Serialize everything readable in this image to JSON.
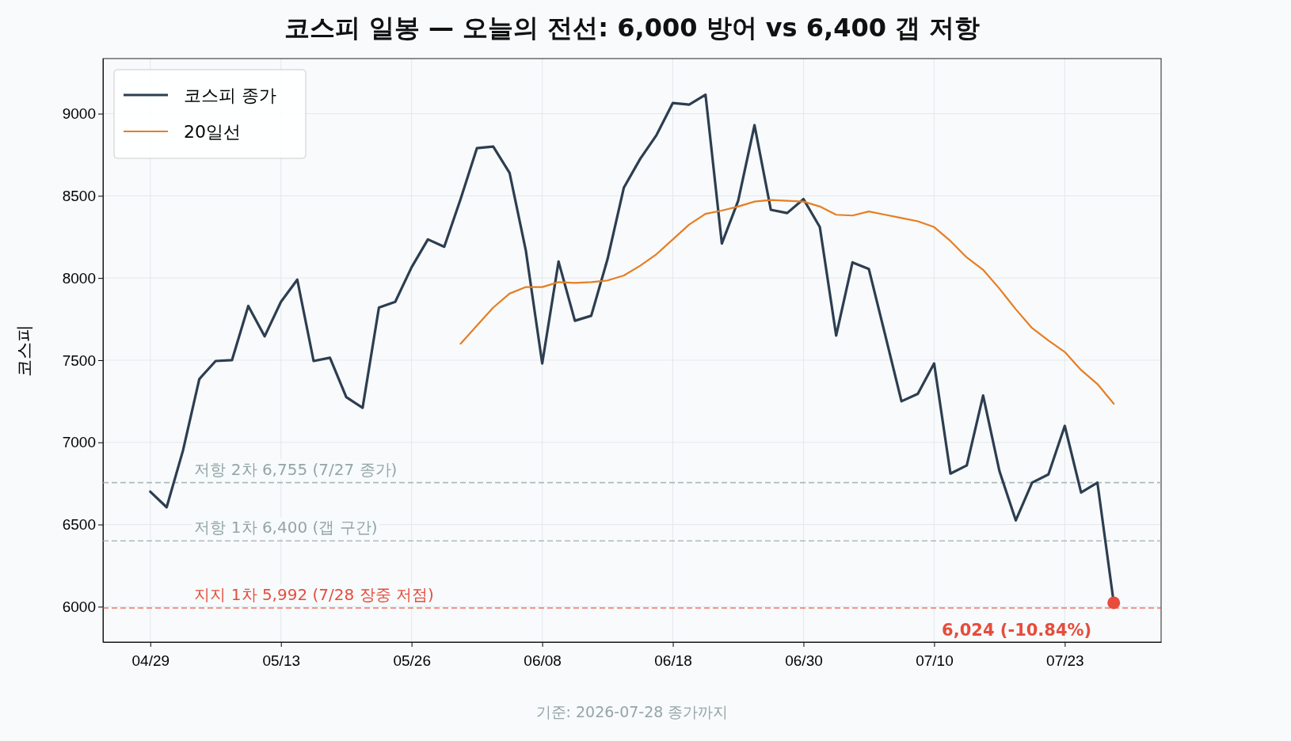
{
  "chart_data": {
    "type": "line",
    "title": "코스피 일봉 — 오늘의 전선: 6,000 방어 vs 6,400 갭 저항",
    "ylabel": "코스피",
    "categories": [
      "04/29",
      null,
      null,
      null,
      null,
      null,
      null,
      null,
      "05/13",
      null,
      null,
      null,
      null,
      null,
      null,
      null,
      "05/26",
      null,
      null,
      null,
      null,
      null,
      null,
      null,
      "06/08",
      null,
      null,
      null,
      null,
      null,
      null,
      null,
      "06/18",
      null,
      null,
      null,
      null,
      null,
      null,
      null,
      "06/30",
      null,
      null,
      null,
      null,
      null,
      null,
      null,
      "07/10",
      null,
      null,
      null,
      null,
      null,
      null,
      null,
      "07/23",
      null,
      null,
      null
    ],
    "series": [
      {
        "name": "코스피 종가",
        "color": "#2c3e50",
        "values": [
          6700,
          6605,
          6950,
          7385,
          7495,
          7500,
          7830,
          7645,
          7855,
          7990,
          7495,
          7515,
          7275,
          7210,
          7820,
          7855,
          8065,
          8235,
          8190,
          8480,
          8790,
          8800,
          8640,
          8165,
          7480,
          8100,
          7740,
          7770,
          8115,
          8550,
          8725,
          8870,
          9065,
          9055,
          9115,
          8210,
          8470,
          8930,
          8415,
          8395,
          8480,
          8310,
          7650,
          8095,
          8055,
          7655,
          7250,
          7295,
          7480,
          6810,
          6860,
          7285,
          6825,
          6525,
          6755,
          6805,
          7100,
          6695,
          6755,
          6024
        ]
      },
      {
        "name": "20일선",
        "color": "#e67e22",
        "values": [
          null,
          null,
          null,
          null,
          null,
          null,
          null,
          null,
          null,
          null,
          null,
          null,
          null,
          null,
          null,
          null,
          null,
          null,
          null,
          7600,
          7710,
          7820,
          7905,
          7945,
          7945,
          7975,
          7970,
          7975,
          7985,
          8015,
          8075,
          8145,
          8235,
          8325,
          8390,
          8410,
          8435,
          8465,
          8475,
          8470,
          8465,
          8435,
          8385,
          8380,
          8405,
          8385,
          8365,
          8345,
          8310,
          8225,
          8125,
          8050,
          7935,
          7810,
          7695,
          7620,
          7550,
          7440,
          7355,
          7235
        ]
      },
      {
        "type": "scatter",
        "color": "#e74c3c",
        "values": [
          null,
          null,
          null,
          null,
          null,
          null,
          null,
          null,
          null,
          null,
          null,
          null,
          null,
          null,
          null,
          null,
          null,
          null,
          null,
          null,
          null,
          null,
          null,
          null,
          null,
          null,
          null,
          null,
          null,
          null,
          null,
          null,
          null,
          null,
          null,
          null,
          null,
          null,
          null,
          null,
          null,
          null,
          null,
          null,
          null,
          null,
          null,
          null,
          null,
          null,
          null,
          null,
          null,
          null,
          null,
          null,
          null,
          null,
          null,
          6024
        ]
      }
    ],
    "ylim": [
      5785,
      9335
    ],
    "yticks": [
      6000,
      6500,
      7000,
      7500,
      8000,
      8500,
      9000
    ],
    "grid": true,
    "legend": "top left",
    "ref_lines": [
      {
        "axis": "y",
        "value": 6755,
        "label": "저항 2차 6,755 (7/27 종가)",
        "color": "#95a5a6",
        "line_style": "dashed"
      },
      {
        "axis": "y",
        "value": 6400,
        "label": "저항 1차 6,400 (갭 구간)",
        "color": "#95a5a6",
        "line_style": "dashed"
      },
      {
        "axis": "y",
        "value": 5992,
        "label": "지지 1차 5,992 (7/28 장중 저점)",
        "color": "#e74c3c",
        "line_style": "dashed"
      }
    ],
    "annotations": [
      "6,024 (-10.84%)",
      "기준: 2026-07-28 종가까지"
    ]
  }
}
